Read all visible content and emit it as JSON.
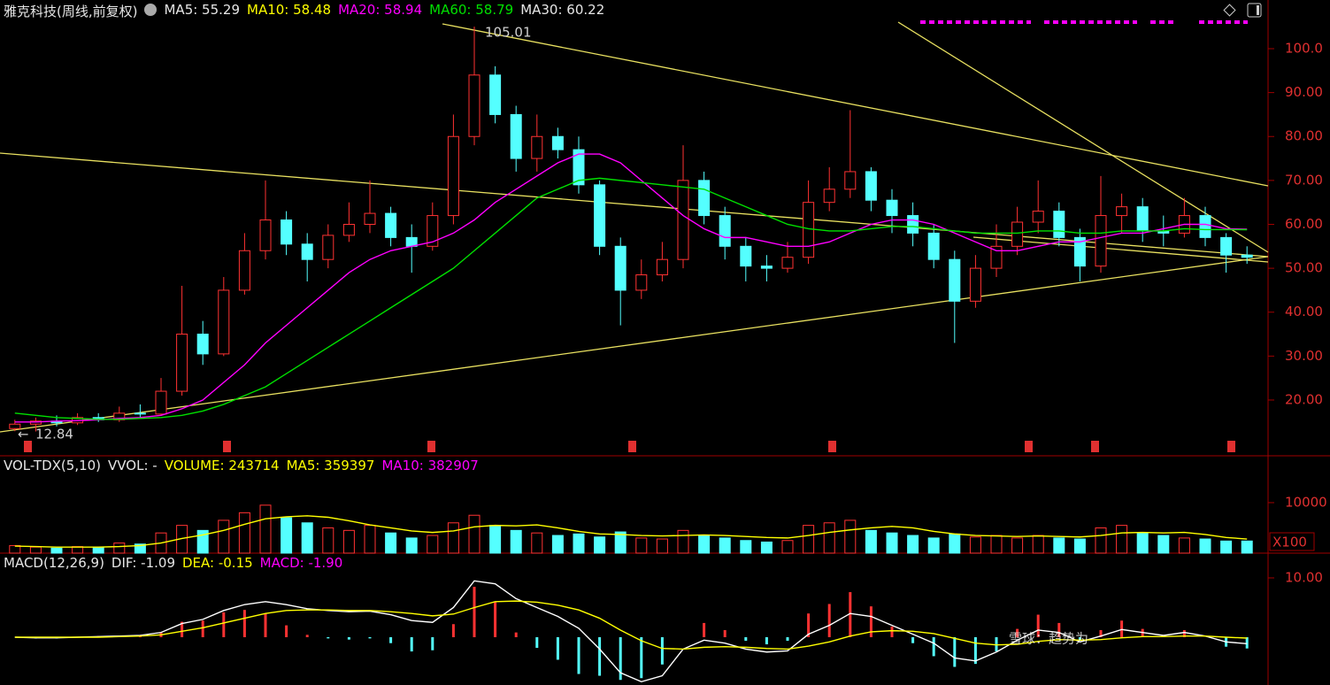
{
  "chart_data": [
    {
      "type": "candlestick",
      "title": "雅克科技(周线,前复权)",
      "legend": [
        {
          "text": "MA5: 55.29",
          "color": "#e6e6e6"
        },
        {
          "text": "MA10: 58.48",
          "color": "#ffff00"
        },
        {
          "text": "MA20: 58.94",
          "color": "#ff00ff"
        },
        {
          "text": "MA60: 58.79",
          "color": "#00e000"
        },
        {
          "text": "MA30: 60.22",
          "color": "#e6e6e6"
        }
      ],
      "up_color": "#ff3232",
      "down_color": "#54ffff",
      "open": [
        13.5,
        14.5,
        15.2,
        14.8,
        16.0,
        15.5,
        17.0,
        16.8,
        22.0,
        35.0,
        30.5,
        45.0,
        54.0,
        61.0,
        55.5,
        52.0,
        57.5,
        60.0,
        62.5,
        57.0,
        55.0,
        62.0,
        80.0,
        94.0,
        85.0,
        75.0,
        80.0,
        77.0,
        69.0,
        55.0,
        45.0,
        48.5,
        52.0,
        70.0,
        62.0,
        55.0,
        50.5,
        50.0,
        52.5,
        65.0,
        68.0,
        72.0,
        65.5,
        62.0,
        58.0,
        52.0,
        42.5,
        50.0,
        55.0,
        60.5,
        63.0,
        57.0,
        50.5,
        62.0,
        64.0,
        58.5,
        58.0,
        62.0,
        57.0,
        53.0
      ],
      "high": [
        15.5,
        16.0,
        16.5,
        17.0,
        17.0,
        18.5,
        19.0,
        25.0,
        46.0,
        38.0,
        48.0,
        58.0,
        70.0,
        63.0,
        58.0,
        60.0,
        65.0,
        70.0,
        64.0,
        60.0,
        65.0,
        85.0,
        105.01,
        96.0,
        87.0,
        85.0,
        82.0,
        80.0,
        70.0,
        57.0,
        52.0,
        56.0,
        78.0,
        72.0,
        64.0,
        57.0,
        53.0,
        56.0,
        70.0,
        73.0,
        86.0,
        73.0,
        68.0,
        65.0,
        60.0,
        54.0,
        53.0,
        60.0,
        64.0,
        70.0,
        65.0,
        59.0,
        71.0,
        67.0,
        66.0,
        62.0,
        66.0,
        64.0,
        58.0,
        55.0
      ],
      "low": [
        12.9,
        12.84,
        14.0,
        14.3,
        15.0,
        15.0,
        16.0,
        16.5,
        21.0,
        28.0,
        30.0,
        44.0,
        52.0,
        53.0,
        47.0,
        50.0,
        56.0,
        58.0,
        55.0,
        49.0,
        54.0,
        60.0,
        78.0,
        83.0,
        72.0,
        72.0,
        75.0,
        67.0,
        53.0,
        37.0,
        43.0,
        47.0,
        50.0,
        60.0,
        52.0,
        47.0,
        47.0,
        49.0,
        51.0,
        63.0,
        66.0,
        63.0,
        58.0,
        55.0,
        50.0,
        33.0,
        41.0,
        48.0,
        53.0,
        58.0,
        55.0,
        47.0,
        49.0,
        58.0,
        56.0,
        55.0,
        57.0,
        55.0,
        49.0,
        51.0
      ],
      "close": [
        14.5,
        15.2,
        14.8,
        16.0,
        15.5,
        17.0,
        16.8,
        22.0,
        35.0,
        30.5,
        45.0,
        54.0,
        61.0,
        55.5,
        52.0,
        57.5,
        60.0,
        62.5,
        57.0,
        55.0,
        62.0,
        80.0,
        94.0,
        85.0,
        75.0,
        80.0,
        77.0,
        69.0,
        55.0,
        45.0,
        48.5,
        52.0,
        70.0,
        62.0,
        55.0,
        50.5,
        50.0,
        52.5,
        65.0,
        68.0,
        72.0,
        65.5,
        62.0,
        58.0,
        52.0,
        42.5,
        50.0,
        55.0,
        60.5,
        63.0,
        57.0,
        50.5,
        62.0,
        64.0,
        58.5,
        58.0,
        62.0,
        57.0,
        53.0,
        52.5
      ],
      "series": [
        {
          "color": "#ff00ff",
          "values": [
            15,
            15,
            15.2,
            15.3,
            15.5,
            15.8,
            16,
            16.5,
            18,
            20,
            24,
            28,
            33,
            37,
            41,
            45,
            49,
            52,
            54,
            55,
            56,
            58,
            61,
            65,
            68,
            71,
            74,
            76,
            76,
            74,
            70,
            66,
            62,
            59,
            57,
            57,
            56,
            55,
            55,
            56,
            58,
            60,
            61,
            61,
            60,
            58,
            56,
            54,
            54,
            55,
            56,
            56,
            57,
            58,
            58,
            59,
            60,
            60,
            59,
            58.9
          ]
        },
        {
          "color": "#00e000",
          "values": [
            17,
            16.5,
            16,
            15.8,
            15.6,
            15.6,
            15.8,
            16,
            16.5,
            17.5,
            19,
            21,
            23,
            26,
            29,
            32,
            35,
            38,
            41,
            44,
            47,
            50,
            54,
            58,
            62,
            66,
            68,
            70,
            70.5,
            70,
            69.5,
            69,
            68.5,
            68,
            66,
            64,
            62,
            60,
            59,
            58.5,
            58.5,
            59,
            59.5,
            59.5,
            59,
            58.5,
            58,
            58,
            58,
            58.5,
            58.5,
            58,
            58,
            58.5,
            58.5,
            58.5,
            59,
            58.8,
            58.8,
            58.79
          ]
        }
      ],
      "annotations": [
        "105.01",
        "12.84"
      ],
      "ylim": [
        7.3,
        106.65
      ],
      "yticks": [
        {
          "value": 20,
          "label": "20.00"
        },
        {
          "value": 30,
          "label": "30.00"
        },
        {
          "value": 40,
          "label": "40.00"
        },
        {
          "value": 50,
          "label": "50.00"
        },
        {
          "value": 60,
          "label": "60.00"
        },
        {
          "value": 70,
          "label": "70.00"
        },
        {
          "value": 80,
          "label": "80.00"
        },
        {
          "value": 90,
          "label": "90.00"
        },
        {
          "value": 100,
          "label": "100.0"
        }
      ]
    },
    {
      "type": "volume",
      "title": "VOL-TDX(5,10)",
      "legend": [
        {
          "text": "VVOL: -",
          "color": "#e6e6e6"
        },
        {
          "text": "VOLUME: 243714",
          "color": "#ffff00"
        },
        {
          "text": "MA5: 359397",
          "color": "#ffff00"
        },
        {
          "text": "MA10: 382907",
          "color": "#ff00ff"
        }
      ],
      "unit": "X100",
      "values": [
        1500,
        1200,
        1000,
        1300,
        1100,
        2000,
        1800,
        4000,
        5500,
        4500,
        6500,
        8000,
        9500,
        7000,
        6000,
        5000,
        4500,
        5500,
        4000,
        3000,
        3500,
        6000,
        7500,
        5500,
        4500,
        4000,
        3500,
        3800,
        3200,
        4200,
        3000,
        2800,
        4500,
        3500,
        3000,
        2500,
        2200,
        2500,
        5500,
        6000,
        6500,
        4500,
        4000,
        3500,
        3000,
        3800,
        3200,
        3500,
        3000,
        3500,
        3000,
        2800,
        5000,
        5500,
        4000,
        3500,
        3000,
        2800,
        2400,
        2400
      ],
      "series": [
        {
          "color": "#ffff00",
          "values": [
            1400,
            1300,
            1200,
            1200,
            1200,
            1300,
            1500,
            2000,
            2900,
            3600,
            4500,
            5700,
            6800,
            7200,
            7400,
            7100,
            6400,
            5600,
            5000,
            4400,
            4100,
            4400,
            5200,
            5500,
            5400,
            5600,
            5000,
            4300,
            3800,
            3700,
            3500,
            3400,
            3500,
            3600,
            3500,
            3300,
            3100,
            3000,
            3500,
            4100,
            4600,
            5000,
            5300,
            5000,
            4300,
            3800,
            3500,
            3400,
            3300,
            3400,
            3300,
            3200,
            3500,
            4000,
            4100,
            4000,
            4100,
            3700,
            3100,
            2800
          ]
        }
      ],
      "ylim": [
        0,
        14900
      ],
      "yticks": [
        10000
      ]
    },
    {
      "type": "macd",
      "title": "MACD(12,26,9)",
      "legend": [
        {
          "text": "DIF: -1.09",
          "color": "#e6e6e6"
        },
        {
          "text": "DEA: -0.15",
          "color": "#ffff00"
        },
        {
          "text": "MACD: -1.90",
          "color": "#ff00ff"
        }
      ],
      "up_color": "#ff3232",
      "down_color": "#54ffff",
      "values": [
        0,
        -0.2,
        -0.2,
        0,
        0.2,
        0.2,
        0.2,
        0.8,
        2.6,
        2.8,
        4.2,
        4.6,
        4.0,
        2.0,
        0.4,
        -0.2,
        -0.4,
        -0.2,
        -1.0,
        -2.4,
        -2.2,
        2.2,
        8.5,
        6.0,
        0.8,
        -1.8,
        -3.8,
        -6.2,
        -6.5,
        -7.2,
        -6.9,
        -4.6,
        0,
        2.4,
        1.2,
        -0.6,
        -1.2,
        -0.6,
        4.0,
        5.6,
        7.6,
        5.2,
        1.8,
        -1.0,
        -3.2,
        -5.0,
        -4.5,
        -2.4,
        1.4,
        3.8,
        2.4,
        -0.6,
        1.2,
        2.8,
        1.4,
        0.4,
        1.2,
        0,
        -1.6,
        -1.9
      ],
      "series": [
        {
          "color": "#ffffff",
          "values": [
            0,
            -0.1,
            -0.1,
            0,
            0.1,
            0.2,
            0.3,
            0.8,
            2.3,
            3.0,
            4.5,
            5.5,
            6.0,
            5.5,
            4.8,
            4.5,
            4.3,
            4.4,
            3.8,
            2.8,
            2.5,
            5.0,
            9.5,
            9.0,
            6.5,
            5.0,
            3.5,
            1.5,
            -2.0,
            -6.0,
            -7.5,
            -6.5,
            -2.0,
            -0.5,
            -1.0,
            -2.0,
            -2.5,
            -2.3,
            0.5,
            2.0,
            4.0,
            3.5,
            2.0,
            0.5,
            -1.0,
            -3.5,
            -4.0,
            -2.5,
            -0.5,
            1.2,
            0.8,
            -0.8,
            0.2,
            1.3,
            0.8,
            0.3,
            0.8,
            0.2,
            -0.8,
            -1.09
          ]
        },
        {
          "color": "#ffff00",
          "values": [
            0,
            0,
            0,
            0,
            0,
            0.1,
            0.2,
            0.4,
            1.0,
            1.6,
            2.4,
            3.2,
            4.0,
            4.5,
            4.6,
            4.6,
            4.5,
            4.5,
            4.3,
            4.0,
            3.6,
            3.9,
            5.0,
            6.0,
            6.1,
            5.9,
            5.4,
            4.6,
            3.2,
            1.2,
            -0.6,
            -1.9,
            -2.0,
            -1.7,
            -1.6,
            -1.7,
            -1.9,
            -2.0,
            -1.5,
            -0.8,
            0.2,
            0.9,
            1.1,
            1.0,
            0.6,
            -0.2,
            -1.0,
            -1.3,
            -1.2,
            -0.7,
            -0.4,
            -0.5,
            -0.4,
            -0.1,
            0.1,
            0.1,
            0.2,
            0.2,
            0.0,
            -0.15
          ]
        }
      ],
      "ylim": [
        -8.06,
        13.43
      ],
      "yticks": [
        {
          "value": 10,
          "label": "10.00"
        }
      ]
    }
  ],
  "watermark": "雪球：趋势为"
}
